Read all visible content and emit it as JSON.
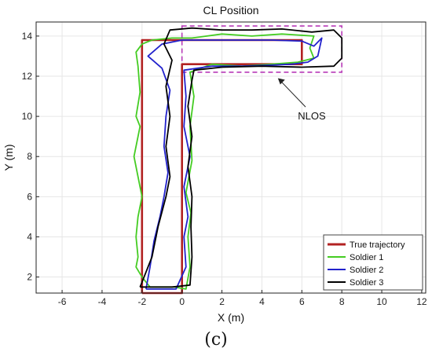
{
  "caption": "(c)",
  "chart_data": {
    "type": "line",
    "title": "CL Position",
    "xlabel": "X (m)",
    "ylabel": "Y (m)",
    "xlim": [
      -7.3,
      12.2
    ],
    "ylim": [
      1.2,
      14.7
    ],
    "xticks": [
      -6,
      -4,
      -2,
      0,
      2,
      4,
      6,
      8,
      10,
      12
    ],
    "yticks": [
      2,
      4,
      6,
      8,
      10,
      12,
      14
    ],
    "grid": true,
    "legend_position": "bottom-right",
    "annotation": {
      "text": "NLOS",
      "region": {
        "x": [
          0,
          8
        ],
        "y": [
          12.2,
          14.5
        ]
      },
      "region_color": "#b83ab8",
      "arrow_tip": [
        4.8,
        11.9
      ],
      "label_at": [
        6.5,
        10.0
      ]
    },
    "series": [
      {
        "name": "True trajectory",
        "color": "#b22222",
        "points": [
          [
            -2,
            1.2
          ],
          [
            0,
            1.2
          ],
          [
            0,
            12.6
          ],
          [
            6,
            12.6
          ],
          [
            6,
            13.8
          ],
          [
            -2,
            13.8
          ],
          [
            -2,
            1.2
          ]
        ]
      },
      {
        "name": "Soldier 1",
        "color": "#44cc22",
        "points": [
          [
            -1.6,
            1.5
          ],
          [
            -0.4,
            1.5
          ],
          [
            0.2,
            1.4
          ],
          [
            0.4,
            2.5
          ],
          [
            0.3,
            4
          ],
          [
            0.45,
            5.2
          ],
          [
            0.2,
            6.2
          ],
          [
            0.5,
            7.8
          ],
          [
            0.4,
            9.5
          ],
          [
            0.6,
            11
          ],
          [
            0.4,
            12.2
          ],
          [
            1.5,
            12.6
          ],
          [
            3,
            12.5
          ],
          [
            4.5,
            12.6
          ],
          [
            5.8,
            12.7
          ],
          [
            6.6,
            12.9
          ],
          [
            6.4,
            13.4
          ],
          [
            6.6,
            14.0
          ],
          [
            5,
            14.1
          ],
          [
            3.5,
            14.0
          ],
          [
            2,
            14.1
          ],
          [
            0.5,
            13.9
          ],
          [
            -0.5,
            13.9
          ],
          [
            -1.5,
            13.8
          ],
          [
            -2,
            13.6
          ],
          [
            -2.3,
            13.2
          ],
          [
            -2.2,
            12.5
          ],
          [
            -2.1,
            11.2
          ],
          [
            -2.3,
            10.0
          ],
          [
            -2.1,
            9.5
          ],
          [
            -2.4,
            8.0
          ],
          [
            -2.2,
            7.0
          ],
          [
            -2.0,
            6.0
          ],
          [
            -2.2,
            5.0
          ],
          [
            -2.3,
            4.0
          ],
          [
            -2.2,
            3.0
          ],
          [
            -2.3,
            2.5
          ],
          [
            -2.0,
            2.0
          ],
          [
            -1.6,
            1.5
          ]
        ]
      },
      {
        "name": "Soldier 2",
        "color": "#2222cc",
        "points": [
          [
            -1.8,
            1.4
          ],
          [
            -0.3,
            1.4
          ],
          [
            0.2,
            2.5
          ],
          [
            0.1,
            4
          ],
          [
            0.3,
            5
          ],
          [
            0.1,
            6.5
          ],
          [
            0.4,
            8
          ],
          [
            0.1,
            9.5
          ],
          [
            0.2,
            11
          ],
          [
            0.1,
            12.3
          ],
          [
            1.5,
            12.5
          ],
          [
            3,
            12.5
          ],
          [
            4.5,
            12.55
          ],
          [
            5.5,
            12.6
          ],
          [
            6.3,
            12.7
          ],
          [
            6.8,
            13.0
          ],
          [
            7.0,
            13.9
          ],
          [
            6.6,
            13.5
          ],
          [
            6.0,
            13.75
          ],
          [
            4.5,
            13.8
          ],
          [
            3,
            13.8
          ],
          [
            1.5,
            13.8
          ],
          [
            0,
            13.8
          ],
          [
            -1,
            13.6
          ],
          [
            -1.7,
            13.0
          ],
          [
            -1.0,
            12.4
          ],
          [
            -0.6,
            11.3
          ],
          [
            -0.8,
            10.0
          ],
          [
            -0.9,
            8.5
          ],
          [
            -0.7,
            7.2
          ],
          [
            -0.9,
            6.0
          ],
          [
            -1.1,
            5.0
          ],
          [
            -1.4,
            3.8
          ],
          [
            -1.6,
            2.5
          ],
          [
            -1.8,
            1.4
          ]
        ]
      },
      {
        "name": "Soldier 3",
        "color": "#000000",
        "points": [
          [
            -2.1,
            1.5
          ],
          [
            -0.5,
            1.5
          ],
          [
            0.4,
            1.6
          ],
          [
            0.5,
            3.0
          ],
          [
            0.45,
            4.5
          ],
          [
            0.5,
            6.0
          ],
          [
            0.3,
            7.5
          ],
          [
            0.5,
            9.0
          ],
          [
            0.3,
            10.5
          ],
          [
            0.5,
            11.8
          ],
          [
            0.6,
            12.3
          ],
          [
            2,
            12.45
          ],
          [
            4,
            12.5
          ],
          [
            6,
            12.45
          ],
          [
            7.6,
            12.5
          ],
          [
            8.0,
            12.9
          ],
          [
            8.0,
            13.9
          ],
          [
            7.6,
            14.3
          ],
          [
            6.5,
            14.2
          ],
          [
            5,
            14.35
          ],
          [
            3.5,
            14.3
          ],
          [
            2,
            14.3
          ],
          [
            0.5,
            14.4
          ],
          [
            -0.6,
            14.3
          ],
          [
            -0.9,
            13.6
          ],
          [
            -0.5,
            12.8
          ],
          [
            -0.8,
            11.5
          ],
          [
            -0.6,
            10.0
          ],
          [
            -0.8,
            8.5
          ],
          [
            -0.6,
            7.0
          ],
          [
            -0.8,
            6.0
          ],
          [
            -1.2,
            4.5
          ],
          [
            -1.5,
            3.0
          ],
          [
            -1.9,
            2.0
          ],
          [
            -2.1,
            1.5
          ]
        ]
      }
    ]
  }
}
